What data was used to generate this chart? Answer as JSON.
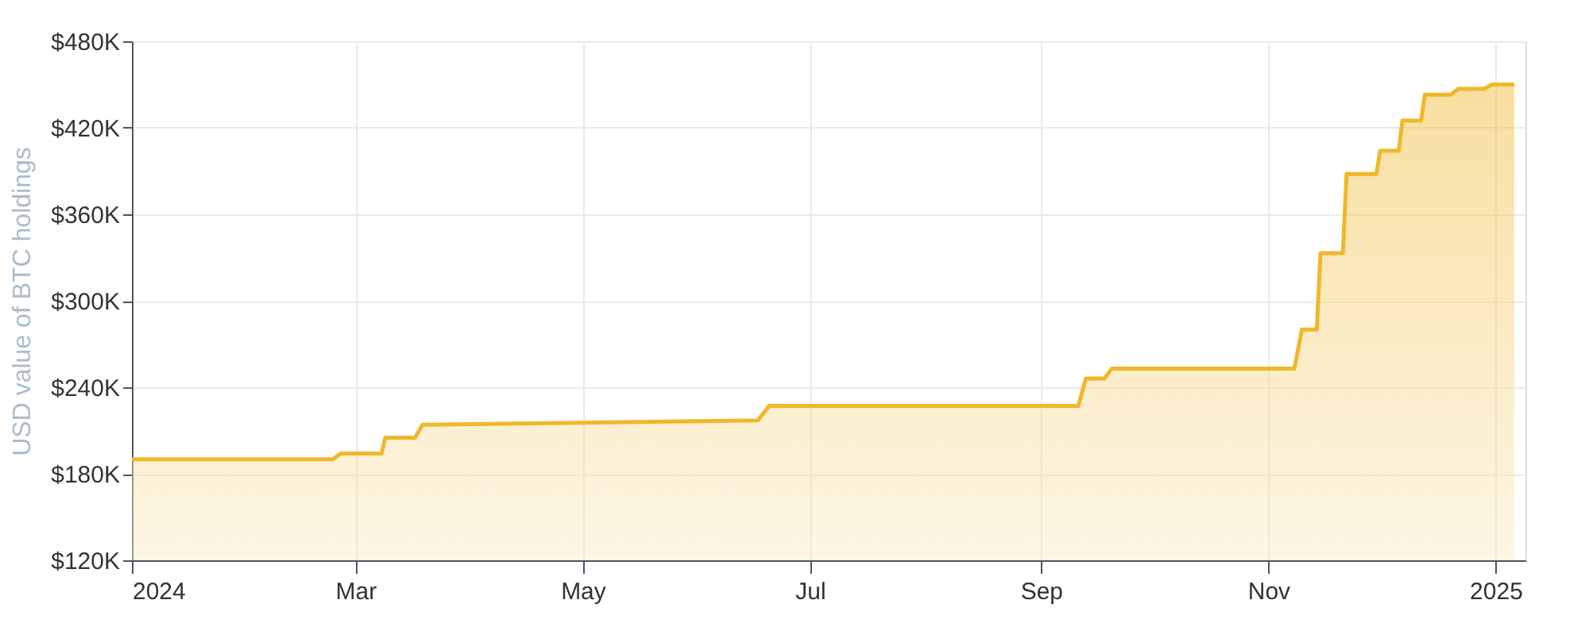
{
  "chart_data": {
    "type": "area",
    "ylabel": "USD value of BTC holdings",
    "x": [
      "2024-01-01",
      "2024-02-24",
      "2024-02-26",
      "2024-03-08",
      "2024-03-09",
      "2024-03-17",
      "2024-03-19",
      "2024-06-17",
      "2024-06-20",
      "2024-09-11",
      "2024-09-13",
      "2024-09-18",
      "2024-09-20",
      "2024-11-08",
      "2024-11-10",
      "2024-11-14",
      "2024-11-15",
      "2024-11-21",
      "2024-11-22",
      "2024-11-30",
      "2024-12-01",
      "2024-12-06",
      "2024-12-07",
      "2024-12-12",
      "2024-12-13",
      "2024-12-20",
      "2024-12-22",
      "2024-12-29",
      "2024-12-31",
      "2025-01-06"
    ],
    "series": [
      {
        "color": "#f0b72a",
        "values": [
          190000,
          190000,
          194000,
          194000,
          205000,
          205000,
          214000,
          217000,
          227000,
          227000,
          246000,
          246000,
          253000,
          253000,
          280000,
          280000,
          333000,
          333000,
          388000,
          388000,
          404000,
          404000,
          425000,
          425000,
          443000,
          443000,
          447000,
          447000,
          450000,
          450000
        ]
      }
    ],
    "xlim": [
      "2024-01-01",
      "2025-01-09"
    ],
    "xticks": [
      {
        "value": "2024-01-01",
        "label": "2024"
      },
      {
        "value": "2024-03-01",
        "label": "Mar"
      },
      {
        "value": "2024-05-01",
        "label": "May"
      },
      {
        "value": "2024-07-01",
        "label": "Jul"
      },
      {
        "value": "2024-09-01",
        "label": "Sep"
      },
      {
        "value": "2024-11-01",
        "label": "Nov"
      },
      {
        "value": "2025-01-01",
        "label": "2025"
      }
    ],
    "ylim": [
      120000,
      480000
    ],
    "yticks": [
      {
        "value": 120000,
        "label": "$120K"
      },
      {
        "value": 180000,
        "label": "$180K"
      },
      {
        "value": 240000,
        "label": "$240K"
      },
      {
        "value": 300000,
        "label": "$300K"
      },
      {
        "value": 360000,
        "label": "$360K"
      },
      {
        "value": 420000,
        "label": "$420K"
      },
      {
        "value": 480000,
        "label": "$480K"
      }
    ],
    "grid": true,
    "marker": "none",
    "line_style": "solid"
  }
}
